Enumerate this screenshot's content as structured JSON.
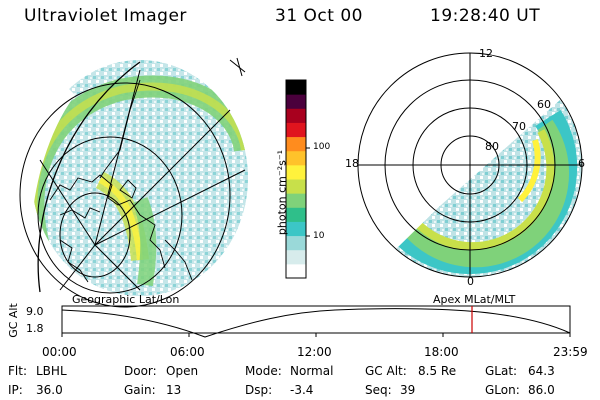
{
  "header": {
    "instrument": "Ultraviolet Imager",
    "date": "31 Oct 00",
    "time": "19:28:40 UT"
  },
  "colorbar": {
    "unit_label": "photon cm⁻²s⁻¹",
    "tick_labels": [
      "100",
      "10"
    ],
    "colors": [
      "#ffffff",
      "#d7ecec",
      "#9ad9d9",
      "#3cc6c6",
      "#2fbf8a",
      "#7fd27a",
      "#c8e04a",
      "#fff23c",
      "#ffc22a",
      "#ff8c1e",
      "#e0141e",
      "#a8001e",
      "#4a003c",
      "#000000"
    ]
  },
  "left_panel": {
    "label": "Geographic Lat/Lon"
  },
  "right_panel": {
    "label": "Apex MLat/MLT",
    "mlt_labels": {
      "top": "12",
      "left": "18",
      "right": "6",
      "bottom": "0"
    },
    "lat_labels": [
      "60",
      "70",
      "80"
    ]
  },
  "timeline": {
    "ylabel": "GC Alt",
    "ymax_label": "9.0",
    "ymin_label": "1.8",
    "x_labels": [
      "00:00",
      "06:00",
      "12:00",
      "18:00",
      "23:59"
    ],
    "marker_color": "#cc0000"
  },
  "footer": {
    "row1": {
      "filter_label": "Flt:",
      "filter_value": "LBHL",
      "door_label": "Door:",
      "door_value": "Open",
      "mode_label": "Mode:",
      "mode_value": "Normal",
      "gcalt_label": "GC Alt:",
      "gcalt_value": "8.5 Re",
      "glat_label": "GLat:",
      "glat_value": "64.3"
    },
    "row2": {
      "ip_label": "IP:",
      "ip_value": "36.0",
      "gain_label": "Gain:",
      "gain_value": "13",
      "dsp_label": "Dsp:",
      "dsp_value": "-3.4",
      "seq_label": "Seq:",
      "seq_value": "39",
      "glon_label": "GLon:",
      "glon_value": "86.0"
    }
  }
}
